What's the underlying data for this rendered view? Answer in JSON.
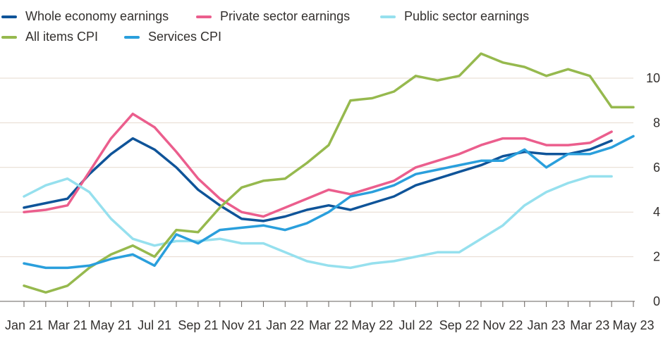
{
  "chart_data": {
    "type": "line",
    "title": "",
    "xlabel": "",
    "ylabel": "",
    "ylim": [
      0,
      11.2
    ],
    "yticks": [
      0,
      2,
      4,
      6,
      8,
      10
    ],
    "grid": true,
    "legend_position": "top-left",
    "x": [
      "Jan 21",
      "Feb 21",
      "Mar 21",
      "Apr 21",
      "May 21",
      "Jun 21",
      "Jul 21",
      "Aug 21",
      "Sep 21",
      "Oct 21",
      "Nov 21",
      "Dec 21",
      "Jan 22",
      "Feb 22",
      "Mar 22",
      "Apr 22",
      "May 22",
      "Jun 22",
      "Jul 22",
      "Aug 22",
      "Sep 22",
      "Oct 22",
      "Nov 22",
      "Dec 22",
      "Jan 23",
      "Feb 23",
      "Mar 23",
      "Apr 23",
      "May 23"
    ],
    "xtick_labels": [
      "Jan 21",
      "Mar 21",
      "May 21",
      "Jul 21",
      "Sep 21",
      "Nov 21",
      "Jan 22",
      "Mar 22",
      "May 22",
      "Jul 22",
      "Sep 22",
      "Nov 22",
      "Jan 23",
      "Mar 23",
      "May 23"
    ],
    "series": [
      {
        "name": "Whole economy earnings",
        "color": "#0f5499",
        "values": [
          4.2,
          4.4,
          4.6,
          5.7,
          6.6,
          7.3,
          6.8,
          6.0,
          5.0,
          4.3,
          3.7,
          3.6,
          3.8,
          4.1,
          4.3,
          4.1,
          4.4,
          4.7,
          5.2,
          5.5,
          5.8,
          6.1,
          6.5,
          6.7,
          6.6,
          6.6,
          6.8,
          7.2,
          null
        ]
      },
      {
        "name": "Private sector earnings",
        "color": "#eb5e8d",
        "values": [
          4.0,
          4.1,
          4.3,
          5.8,
          7.3,
          8.4,
          7.8,
          6.7,
          5.5,
          4.6,
          4.0,
          3.8,
          4.2,
          4.6,
          5.0,
          4.8,
          5.1,
          5.4,
          6.0,
          6.3,
          6.6,
          7.0,
          7.3,
          7.3,
          7.0,
          7.0,
          7.1,
          7.6,
          null
        ]
      },
      {
        "name": "Public sector earnings",
        "color": "#96e0ee",
        "values": [
          4.7,
          5.2,
          5.5,
          4.9,
          3.7,
          2.8,
          2.5,
          2.7,
          2.7,
          2.8,
          2.6,
          2.6,
          2.2,
          1.8,
          1.6,
          1.5,
          1.7,
          1.8,
          2.0,
          2.2,
          2.2,
          2.8,
          3.4,
          4.3,
          4.9,
          5.3,
          5.6,
          5.6,
          null
        ]
      },
      {
        "name": "All items CPI",
        "color": "#96b94e",
        "values": [
          0.7,
          0.4,
          0.7,
          1.5,
          2.1,
          2.5,
          2.0,
          3.2,
          3.1,
          4.2,
          5.1,
          5.4,
          5.5,
          6.2,
          7.0,
          9.0,
          9.1,
          9.4,
          10.1,
          9.9,
          10.1,
          11.1,
          10.7,
          10.5,
          10.1,
          10.4,
          10.1,
          8.7,
          8.7
        ]
      },
      {
        "name": "Services CPI",
        "color": "#2a9fdc",
        "values": [
          1.7,
          1.5,
          1.5,
          1.6,
          1.9,
          2.1,
          1.6,
          3.0,
          2.6,
          3.2,
          3.3,
          3.4,
          3.2,
          3.5,
          4.0,
          4.7,
          4.9,
          5.2,
          5.7,
          5.9,
          6.1,
          6.3,
          6.3,
          6.8,
          6.0,
          6.6,
          6.6,
          6.9,
          7.4
        ]
      }
    ]
  }
}
